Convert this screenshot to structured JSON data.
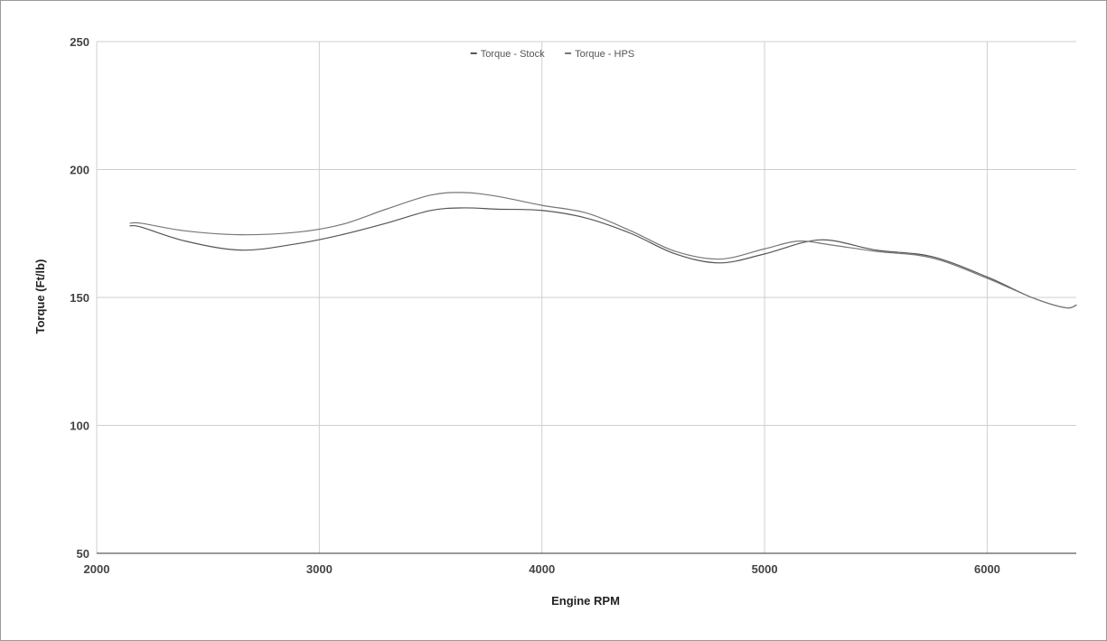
{
  "chart_data": {
    "type": "line",
    "title": "",
    "xlabel": "Engine RPM",
    "ylabel": "Torque (Ft/lb)",
    "xlim": [
      2000,
      6400
    ],
    "ylim": [
      50,
      250
    ],
    "x_ticks": [
      2000,
      3000,
      4000,
      5000,
      6000
    ],
    "y_ticks": [
      50,
      100,
      150,
      200,
      250
    ],
    "x_tick_labels": [
      "2000",
      "3000",
      "4000",
      "5000",
      "6000"
    ],
    "y_tick_labels": [
      "50",
      "100",
      "150",
      "200",
      "250"
    ],
    "grid": true,
    "legend_position": "top-center",
    "series": [
      {
        "name": "Torque - Stock",
        "color": "#555555",
        "x": [
          2150,
          2200,
          2400,
          2650,
          2900,
          3100,
          3300,
          3500,
          3650,
          3800,
          4000,
          4200,
          4400,
          4600,
          4800,
          5000,
          5250,
          5500,
          5750,
          6000,
          6200,
          6350,
          6400
        ],
        "y": [
          178,
          177.5,
          172,
          168.5,
          171,
          174.5,
          179,
          184,
          185,
          184.5,
          184,
          181,
          175,
          167,
          163.5,
          167,
          172.5,
          168.5,
          166,
          158,
          150,
          146,
          147
        ]
      },
      {
        "name": "Torque - HPS",
        "color": "#777777",
        "x": [
          2150,
          2200,
          2400,
          2650,
          2900,
          3100,
          3300,
          3500,
          3650,
          3800,
          4000,
          4200,
          4400,
          4600,
          4800,
          5000,
          5150,
          5300,
          5500,
          5750,
          6000,
          6200,
          6350,
          6400
        ],
        "y": [
          179,
          179,
          176,
          174.5,
          175.5,
          178.5,
          184.5,
          190,
          191,
          189.5,
          186,
          183,
          176,
          168,
          165,
          169,
          172,
          170.5,
          168,
          165.5,
          157.5,
          150,
          146,
          147
        ]
      }
    ]
  }
}
